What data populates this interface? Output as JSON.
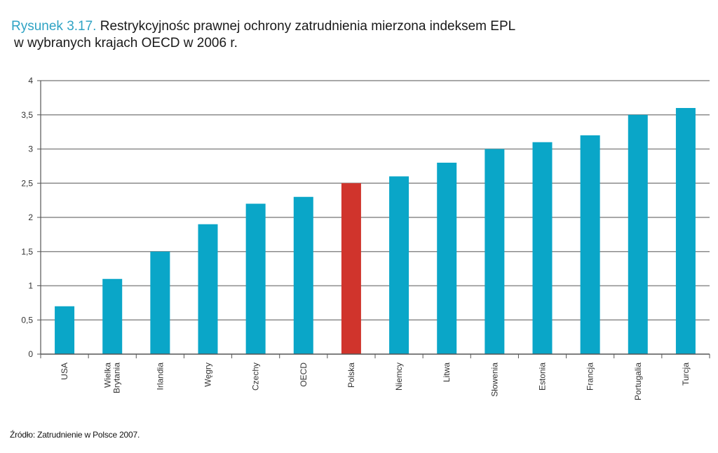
{
  "header": {
    "figure_label": "Rysunek 3.17.",
    "title_line1": "Restrykcyjnośc prawnej ochrony zatrudnienia mierzona indeksem EPL",
    "title_line2": "w wybranych krajach OECD w 2006 r."
  },
  "source": "Źródło: Zatrudnienie w Polsce 2007.",
  "colors": {
    "default_bar": "#0aa6c8",
    "highlight_bar": "#d0342c",
    "grid": "#8c8c8c",
    "axis": "#555555"
  },
  "chart_data": {
    "type": "bar",
    "categories": [
      "USA",
      "Wielka Brytania",
      "Irlandia",
      "Węgry",
      "Czechy",
      "OECD",
      "Polska",
      "Niemcy",
      "Litwa",
      "Słowenia",
      "Estonia",
      "Francja",
      "Portugalia",
      "Turcja"
    ],
    "category_lines": [
      [
        "USA"
      ],
      [
        "Wielka",
        "Brytania"
      ],
      [
        "Irlandia"
      ],
      [
        "Węgry"
      ],
      [
        "Czechy"
      ],
      [
        "OECD"
      ],
      [
        "Polska"
      ],
      [
        "Niemcy"
      ],
      [
        "Litwa"
      ],
      [
        "Słowenia"
      ],
      [
        "Estonia"
      ],
      [
        "Francja"
      ],
      [
        "Portugalia"
      ],
      [
        "Turcja"
      ]
    ],
    "values": [
      0.7,
      1.1,
      1.5,
      1.9,
      2.2,
      2.3,
      2.5,
      2.6,
      2.8,
      3.0,
      3.1,
      3.2,
      3.5,
      3.6
    ],
    "highlight": "Polska",
    "ylim": [
      0,
      4
    ],
    "yticks": [
      "0",
      "0,5",
      "1",
      "1,5",
      "2",
      "2,5",
      "3",
      "3,5",
      "4"
    ],
    "grid": true
  }
}
